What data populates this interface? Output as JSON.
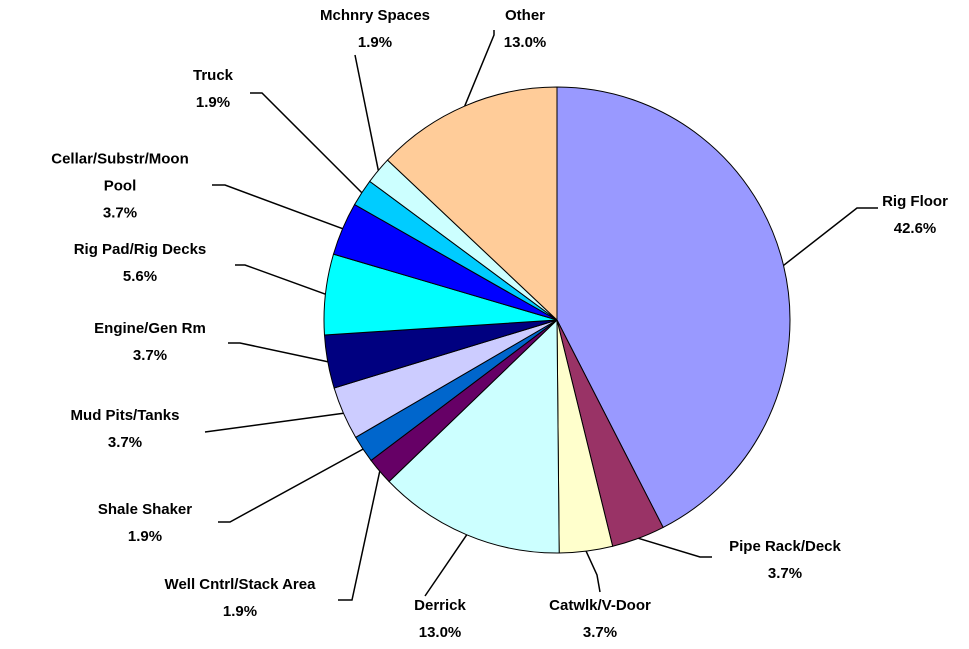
{
  "chart_data": {
    "type": "pie",
    "categories": [
      "Rig Floor",
      "Pipe Rack/Deck",
      "Catwlk/V-Door",
      "Derrick",
      "Well Cntrl/Stack Area",
      "Shale Shaker",
      "Mud Pits/Tanks",
      "Engine/Gen Rm",
      "Rig Pad/Rig Decks",
      "Cellar/Substr/Moon Pool",
      "Truck",
      "Mchnry Spaces",
      "Other"
    ],
    "values": [
      42.6,
      3.7,
      3.7,
      13.0,
      1.9,
      1.9,
      3.7,
      3.7,
      5.6,
      3.7,
      1.9,
      1.9,
      13.0
    ],
    "value_labels": [
      "42.6%",
      "3.7%",
      "3.7%",
      "13.0%",
      "1.9%",
      "1.9%",
      "3.7%",
      "3.7%",
      "5.6%",
      "3.7%",
      "1.9%",
      "1.9%",
      "13.0%"
    ],
    "colors": [
      "#9999ff",
      "#993366",
      "#ffffcc",
      "#ccffff",
      "#660066",
      "#0066cc",
      "#ccccff",
      "#000080",
      "#00ffff",
      "#0000ff",
      "#00ccff",
      "#ccffff",
      "#ffcc99"
    ]
  }
}
